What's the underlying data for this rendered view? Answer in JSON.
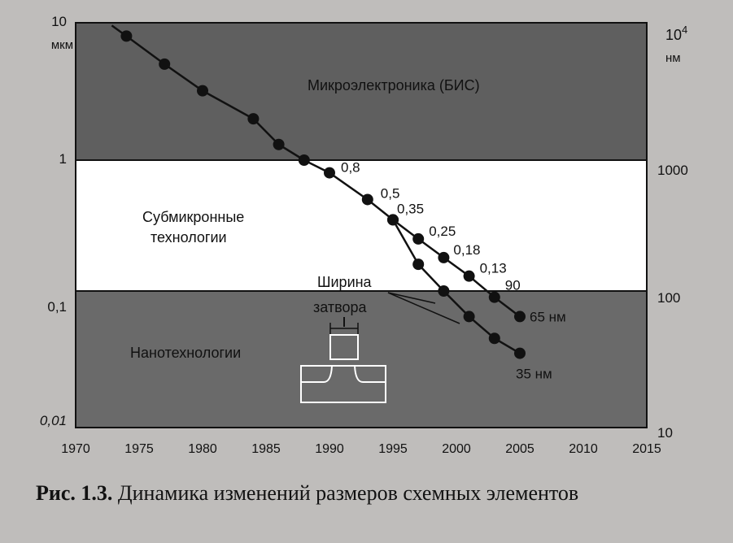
{
  "chart_data": {
    "type": "line",
    "xlim": [
      1970,
      2015
    ],
    "x_ticks": [
      "1970",
      "1975",
      "1980",
      "1985",
      "1990",
      "1995",
      "2000",
      "2005",
      "2010",
      "2015"
    ],
    "y_left_unit": "мкм",
    "y_left_ticks": [
      "10",
      "1",
      "0,1",
      "0,01"
    ],
    "y_right_unit": "нм",
    "y_right_ticks": [
      "1000",
      "100",
      "10"
    ],
    "y_right_top_base": "10",
    "y_right_top_exp": "4",
    "ylim_um": [
      0.01,
      10
    ],
    "y_scale": "log",
    "bands": [
      {
        "name": "Микроэлектроника (БИС)",
        "from": 1,
        "to": 10,
        "color": "#5f5f5f"
      },
      {
        "name": "Субмикронные технологии",
        "from": 0.1,
        "to": 1,
        "color": "#ffffff"
      },
      {
        "name": "Нанотехнологии",
        "from": 0.01,
        "to": 0.1,
        "color": "#6a6a6a"
      }
    ],
    "band_labels": {
      "micro": "Микроэлектроника (БИС)",
      "submicron_1": "Субмикронные",
      "submicron_2": "технологии",
      "nano": "Нанотехнологии"
    },
    "series": [
      {
        "x": [
          1974,
          1977,
          1980,
          1984,
          1986,
          1988,
          1990,
          1993,
          1995,
          1997,
          1999,
          2001,
          2003,
          2005
        ],
        "y": [
          8,
          5,
          3.2,
          2.0,
          1.3,
          1.0,
          0.8,
          0.5,
          0.35,
          0.25,
          0.18,
          0.13,
          0.09,
          0.065
        ]
      },
      {
        "x": [
          1995,
          1997,
          1999,
          2001,
          2003,
          2005
        ],
        "y": [
          0.35,
          0.16,
          0.1,
          0.065,
          0.045,
          0.035
        ]
      }
    ],
    "point_labels": [
      {
        "text": "0,8",
        "x": 1990,
        "y": 0.8
      },
      {
        "text": "0,5",
        "x": 1993,
        "y": 0.5
      },
      {
        "text": "0,35",
        "x": 1995,
        "y": 0.35
      },
      {
        "text": "0,25",
        "x": 1997,
        "y": 0.25
      },
      {
        "text": "0,18",
        "x": 1999,
        "y": 0.18
      },
      {
        "text": "0,13",
        "x": 2001,
        "y": 0.13
      },
      {
        "text": "90",
        "x": 2003,
        "y": 0.09
      },
      {
        "text": "65 нм",
        "x": 2005,
        "y": 0.065
      },
      {
        "text": "35 нм",
        "x": 2005,
        "y": 0.035
      }
    ],
    "gate_annotation_line1": "Ширина",
    "gate_annotation_line2": "затвора"
  },
  "caption": {
    "prefix": "Рис. 1.3.",
    "text": "Динамика изменений размеров схемных элементов"
  }
}
